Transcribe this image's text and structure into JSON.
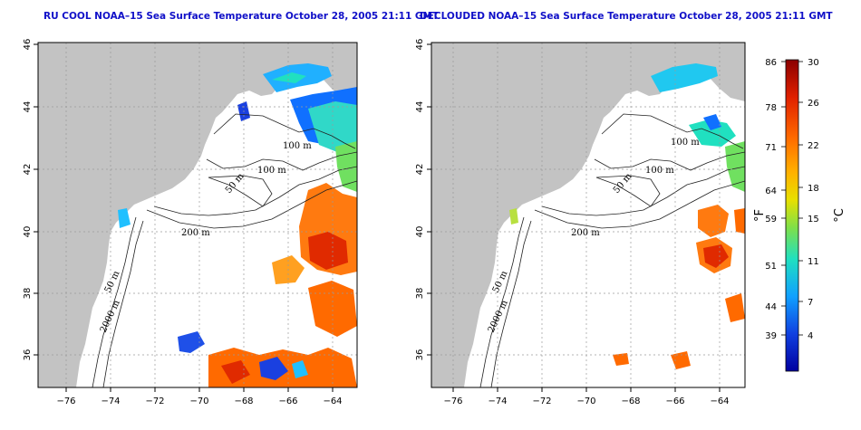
{
  "left_panel": {
    "title": "RU COOL NOAA–15 Sea Surface Temperature October 28, 2005 21:11 GMT"
  },
  "right_panel": {
    "title": "DECLOUDED NOAA–15 Sea Surface Temperature October 28, 2005 21:11 GMT"
  },
  "axes": {
    "x_ticks": [
      "−76",
      "−74",
      "−72",
      "−70",
      "−68",
      "−66",
      "−64"
    ],
    "y_ticks": [
      "46",
      "44",
      "42",
      "40",
      "38",
      "36"
    ]
  },
  "contours": {
    "l50": "50 m",
    "l100a": "100 m",
    "l100b": "100 m",
    "l200": "200 m",
    "l2000": "2000 m"
  },
  "colorbar": {
    "unit_f": "°F",
    "unit_c": "°C",
    "f_labels": [
      "86",
      "78",
      "71",
      "64",
      "59",
      "51",
      "44",
      "39"
    ],
    "c_labels": [
      "30",
      "26",
      "22",
      "18",
      "15",
      "11",
      "7",
      "4"
    ],
    "colors": [
      "#8b0000",
      "#e02000",
      "#ff6a00",
      "#ffb000",
      "#e8e000",
      "#7ee04a",
      "#20e0c0",
      "#10a0ff",
      "#1040e0",
      "#0000a0"
    ]
  },
  "map_colors": {
    "land": "#c3c3c3",
    "ocean": "#ffffff",
    "grid": "#9a9a9a"
  }
}
